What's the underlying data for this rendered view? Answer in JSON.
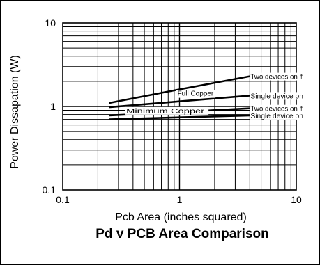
{
  "chart_data": {
    "type": "line",
    "title": "Pd v PCB Area Comparison",
    "xlabel": "Pcb Area (inches squared)",
    "ylabel": "Power Dissapation (W)",
    "xscale": "log",
    "yscale": "log",
    "xlim": [
      0.1,
      10
    ],
    "ylim": [
      0.1,
      10
    ],
    "x_ticks": [
      0.1,
      1,
      10
    ],
    "y_ticks": [
      0.1,
      1,
      10
    ],
    "x_tick_labels": [
      "0.1",
      "1",
      "10"
    ],
    "y_tick_labels": [
      "0.1",
      "1",
      "10"
    ],
    "grid": true,
    "series": [
      {
        "name": "Two devices on †",
        "group": "Full Copper",
        "x": [
          0.25,
          1,
          4
        ],
        "y": [
          1.1,
          1.6,
          2.3
        ]
      },
      {
        "name": "Single device on",
        "group": "Full Copper",
        "x": [
          0.25,
          1,
          4
        ],
        "y": [
          0.98,
          1.15,
          1.35
        ]
      },
      {
        "name": "Two devices on †",
        "group": "Minimum Copper",
        "x": [
          0.25,
          1,
          4
        ],
        "y": [
          0.78,
          0.86,
          0.95
        ]
      },
      {
        "name": "Single device on",
        "group": "Minimum Copper",
        "x": [
          0.25,
          1,
          4
        ],
        "y": [
          0.7,
          0.74,
          0.78
        ]
      }
    ],
    "annotations": [
      "Full Copper",
      "Minimum Copper"
    ]
  }
}
